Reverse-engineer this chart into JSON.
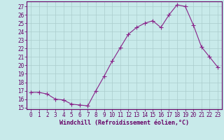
{
  "x": [
    0,
    1,
    2,
    3,
    4,
    5,
    6,
    7,
    8,
    9,
    10,
    11,
    12,
    13,
    14,
    15,
    16,
    17,
    18,
    19,
    20,
    21,
    22,
    23
  ],
  "y": [
    16.8,
    16.8,
    16.6,
    16.0,
    15.9,
    15.4,
    15.3,
    15.2,
    17.0,
    18.7,
    20.5,
    22.1,
    23.7,
    24.5,
    25.0,
    25.3,
    24.5,
    26.0,
    27.2,
    27.0,
    24.8,
    22.2,
    21.0,
    19.8
  ],
  "line_color": "#882288",
  "marker": "+",
  "marker_size": 4,
  "bg_color": "#c8eaea",
  "grid_color": "#aacccc",
  "xlabel": "Windchill (Refroidissement éolien,°C)",
  "ylim": [
    14.8,
    27.6
  ],
  "xlim": [
    -0.5,
    23.5
  ],
  "yticks": [
    15,
    16,
    17,
    18,
    19,
    20,
    21,
    22,
    23,
    24,
    25,
    26,
    27
  ],
  "xticks": [
    0,
    1,
    2,
    3,
    4,
    5,
    6,
    7,
    8,
    9,
    10,
    11,
    12,
    13,
    14,
    15,
    16,
    17,
    18,
    19,
    20,
    21,
    22,
    23
  ],
  "tick_fontsize": 5.5,
  "xlabel_fontsize": 6.0,
  "tick_color": "#660066",
  "spine_color": "#660066"
}
